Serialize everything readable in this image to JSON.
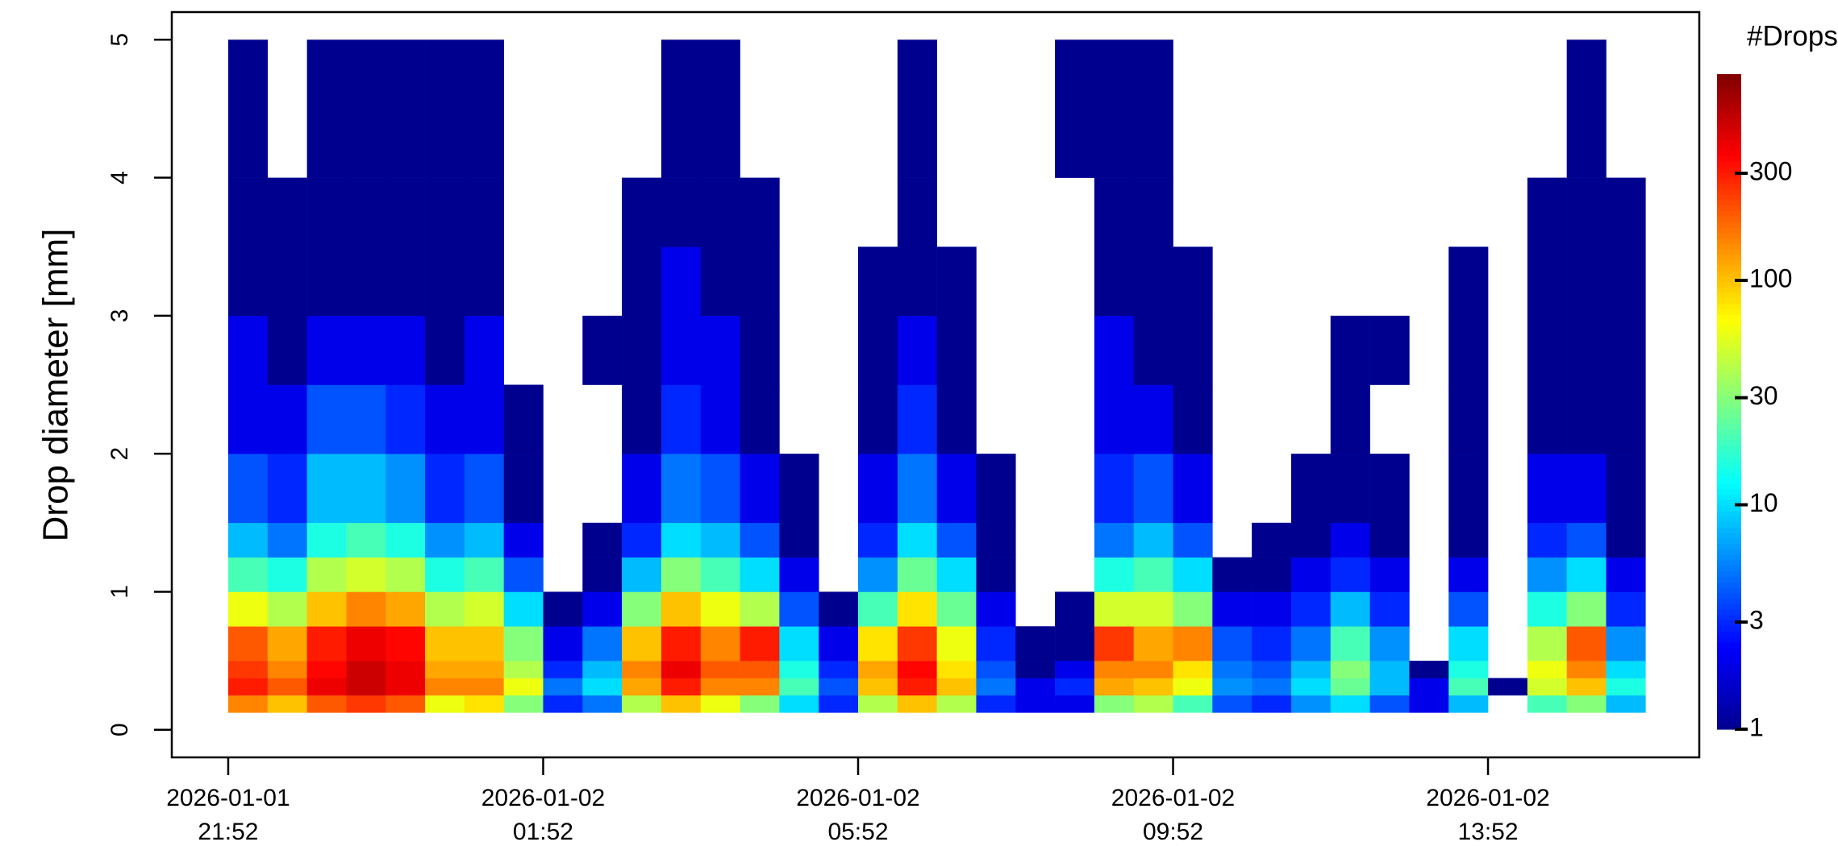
{
  "chart_data": {
    "type": "heatmap",
    "y_label": "Drop diameter [mm]",
    "colorbar_title": "#Drops",
    "xbins": [
      "2026-01-01 21:52",
      "2026-01-01 22:22",
      "2026-01-01 22:52",
      "2026-01-01 23:22",
      "2026-01-01 23:52",
      "2026-01-02 00:22",
      "2026-01-02 00:52",
      "2026-01-02 01:22",
      "2026-01-02 01:52",
      "2026-01-02 02:22",
      "2026-01-02 02:52",
      "2026-01-02 03:22",
      "2026-01-02 03:52",
      "2026-01-02 04:22",
      "2026-01-02 04:52",
      "2026-01-02 05:22",
      "2026-01-02 05:52",
      "2026-01-02 06:22",
      "2026-01-02 06:52",
      "2026-01-02 07:22",
      "2026-01-02 07:52",
      "2026-01-02 08:22",
      "2026-01-02 08:52",
      "2026-01-02 09:22",
      "2026-01-02 09:52",
      "2026-01-02 10:22",
      "2026-01-02 10:52",
      "2026-01-02 11:22",
      "2026-01-02 11:52",
      "2026-01-02 12:22",
      "2026-01-02 12:52",
      "2026-01-02 13:22",
      "2026-01-02 13:52",
      "2026-01-02 14:22",
      "2026-01-02 14:52",
      "2026-01-02 15:22",
      "2026-01-02 15:52"
    ],
    "ybins": [
      0.125,
      0.25,
      0.375,
      0.5,
      0.75,
      1,
      1.25,
      1.5,
      2,
      2.5,
      3,
      3.5,
      4,
      5
    ],
    "z": [
      [
        150,
        300,
        250,
        200,
        60,
        20,
        8,
        4,
        2,
        2,
        1,
        1,
        1
      ],
      [
        100,
        200,
        150,
        120,
        40,
        15,
        5,
        3,
        2,
        1,
        1,
        1,
        null
      ],
      [
        200,
        400,
        350,
        300,
        100,
        40,
        15,
        8,
        4,
        2,
        1,
        1,
        1
      ],
      [
        250,
        500,
        500,
        400,
        150,
        50,
        20,
        8,
        4,
        2,
        1,
        1,
        1
      ],
      [
        200,
        400,
        400,
        350,
        120,
        40,
        15,
        6,
        3,
        2,
        1,
        1,
        1
      ],
      [
        60,
        150,
        120,
        100,
        40,
        15,
        6,
        3,
        2,
        1,
        1,
        1,
        1
      ],
      [
        80,
        150,
        120,
        100,
        50,
        20,
        8,
        4,
        2,
        2,
        1,
        1,
        1
      ],
      [
        30,
        60,
        40,
        30,
        10,
        4,
        2,
        1,
        1,
        null,
        null,
        null,
        null
      ],
      [
        3,
        5,
        3,
        2,
        1,
        null,
        null,
        null,
        null,
        null,
        null,
        null,
        null
      ],
      [
        5,
        10,
        8,
        5,
        2,
        1,
        1,
        null,
        null,
        1,
        null,
        null,
        null
      ],
      [
        40,
        120,
        150,
        100,
        30,
        8,
        3,
        2,
        1,
        1,
        1,
        1,
        null
      ],
      [
        100,
        300,
        400,
        300,
        100,
        30,
        10,
        5,
        3,
        2,
        2,
        1,
        1
      ],
      [
        60,
        150,
        200,
        150,
        60,
        20,
        8,
        4,
        2,
        2,
        1,
        1,
        1
      ],
      [
        30,
        150,
        200,
        300,
        40,
        10,
        4,
        2,
        1,
        1,
        1,
        1,
        null
      ],
      [
        10,
        20,
        15,
        10,
        4,
        2,
        1,
        1,
        null,
        null,
        null,
        null,
        null
      ],
      [
        3,
        4,
        3,
        2,
        1,
        null,
        null,
        null,
        null,
        null,
        null,
        null,
        null
      ],
      [
        40,
        100,
        120,
        80,
        20,
        6,
        3,
        2,
        1,
        1,
        1,
        null,
        null
      ],
      [
        100,
        300,
        350,
        250,
        80,
        25,
        10,
        5,
        3,
        2,
        1,
        1,
        1
      ],
      [
        40,
        100,
        80,
        60,
        25,
        10,
        4,
        2,
        1,
        1,
        1,
        null,
        null
      ],
      [
        3,
        5,
        4,
        3,
        2,
        1,
        1,
        1,
        null,
        null,
        null,
        null,
        null
      ],
      [
        2,
        2,
        1,
        1,
        null,
        null,
        null,
        null,
        null,
        null,
        null,
        null,
        null
      ],
      [
        2,
        3,
        2,
        1,
        1,
        null,
        null,
        null,
        null,
        null,
        null,
        null,
        1
      ],
      [
        30,
        120,
        150,
        250,
        50,
        15,
        5,
        3,
        2,
        2,
        1,
        1,
        1
      ],
      [
        40,
        100,
        150,
        120,
        50,
        20,
        8,
        4,
        2,
        1,
        1,
        1,
        1
      ],
      [
        20,
        60,
        80,
        150,
        30,
        10,
        4,
        2,
        1,
        1,
        1,
        null,
        null
      ],
      [
        4,
        6,
        5,
        4,
        2,
        1,
        null,
        null,
        null,
        null,
        null,
        null,
        null
      ],
      [
        3,
        5,
        4,
        3,
        2,
        1,
        1,
        null,
        null,
        null,
        null,
        null,
        null
      ],
      [
        6,
        10,
        8,
        5,
        3,
        2,
        1,
        1,
        null,
        null,
        null,
        null,
        null
      ],
      [
        10,
        25,
        30,
        20,
        8,
        3,
        2,
        1,
        1,
        1,
        null,
        null,
        null
      ],
      [
        4,
        8,
        8,
        6,
        3,
        2,
        1,
        1,
        null,
        1,
        null,
        null,
        null
      ],
      [
        2,
        2,
        1,
        null,
        null,
        null,
        null,
        null,
        null,
        null,
        null,
        null,
        null
      ],
      [
        8,
        20,
        15,
        10,
        4,
        2,
        1,
        1,
        1,
        1,
        1,
        null,
        null
      ],
      [
        null,
        1,
        null,
        null,
        null,
        null,
        null,
        null,
        null,
        null,
        null,
        null,
        null
      ],
      [
        20,
        50,
        60,
        40,
        15,
        6,
        3,
        2,
        1,
        1,
        1,
        1,
        null
      ],
      [
        30,
        100,
        150,
        200,
        30,
        10,
        4,
        2,
        1,
        1,
        1,
        1,
        1
      ],
      [
        8,
        15,
        10,
        6,
        3,
        2,
        1,
        1,
        1,
        1,
        1,
        1,
        null
      ]
    ],
    "xlim": [
      "2026-01-01 21:09",
      "2026-01-02 16:33"
    ],
    "xticks": [
      {
        "value": "2026-01-01 21:52",
        "label": "2026-01-01\n21:52"
      },
      {
        "value": "2026-01-02 01:52",
        "label": "2026-01-02\n01:52"
      },
      {
        "value": "2026-01-02 05:52",
        "label": "2026-01-02\n05:52"
      },
      {
        "value": "2026-01-02 09:52",
        "label": "2026-01-02\n09:52"
      },
      {
        "value": "2026-01-02 13:52",
        "label": "2026-01-02\n13:52"
      }
    ],
    "ylim": [
      -0.2,
      5.2
    ],
    "yticks": [
      0,
      1,
      2,
      3,
      4,
      5
    ],
    "zlim": [
      1,
      830
    ],
    "zlog": true,
    "zticks": [
      1,
      3,
      10,
      30,
      100,
      300
    ],
    "colors": [
      "#00008f",
      "#0000ff",
      "#0080ff",
      "#00ffff",
      "#80ff80",
      "#ffff00",
      "#ff8000",
      "#ff0000",
      "#800000"
    ]
  }
}
